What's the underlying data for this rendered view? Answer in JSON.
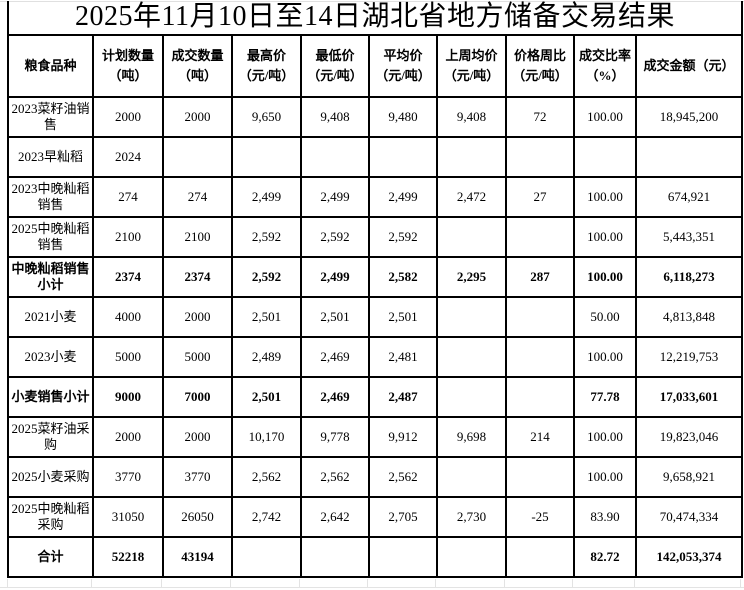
{
  "title": "2025年11月10日至14日湖北省地方储备交易结果",
  "table": {
    "columns": [
      "粮食品种",
      "计划数量\n（吨）",
      "成交数量\n（吨）",
      "最高价\n（元/吨）",
      "最低价\n（元/吨）",
      "平均价\n（元/吨）",
      "上周均价\n（元/吨）",
      "价格周比\n（元/吨）",
      "成交比率\n（%）",
      "成交金额（元）"
    ],
    "rows": [
      {
        "name": "2023菜籽油销售",
        "bold": false,
        "values": [
          "2000",
          "2000",
          "9,650",
          "9,408",
          "9,480",
          "9,408",
          "72",
          "100.00",
          "18,945,200"
        ]
      },
      {
        "name": "2023早籼稻",
        "bold": false,
        "values": [
          "2024",
          "",
          "",
          "",
          "",
          "",
          "",
          "",
          ""
        ]
      },
      {
        "name": "2023中晚籼稻销售",
        "bold": false,
        "values": [
          "274",
          "274",
          "2,499",
          "2,499",
          "2,499",
          "2,472",
          "27",
          "100.00",
          "674,921"
        ]
      },
      {
        "name": "2025中晚籼稻销售",
        "bold": false,
        "values": [
          "2100",
          "2100",
          "2,592",
          "2,592",
          "2,592",
          "",
          "",
          "100.00",
          "5,443,351"
        ]
      },
      {
        "name": "中晚籼稻销售小计",
        "bold": true,
        "values": [
          "2374",
          "2374",
          "2,592",
          "2,499",
          "2,582",
          "2,295",
          "287",
          "100.00",
          "6,118,273"
        ]
      },
      {
        "name": "2021小麦",
        "bold": false,
        "values": [
          "4000",
          "2000",
          "2,501",
          "2,501",
          "2,501",
          "",
          "",
          "50.00",
          "4,813,848"
        ]
      },
      {
        "name": "2023小麦",
        "bold": false,
        "values": [
          "5000",
          "5000",
          "2,489",
          "2,469",
          "2,481",
          "",
          "",
          "100.00",
          "12,219,753"
        ]
      },
      {
        "name": "小麦销售小计",
        "bold": true,
        "values": [
          "9000",
          "7000",
          "2,501",
          "2,469",
          "2,487",
          "",
          "",
          "77.78",
          "17,033,601"
        ]
      },
      {
        "name": "2025菜籽油采购",
        "bold": false,
        "values": [
          "2000",
          "2000",
          "10,170",
          "9,778",
          "9,912",
          "9,698",
          "214",
          "100.00",
          "19,823,046"
        ]
      },
      {
        "name": "2025小麦采购",
        "bold": false,
        "values": [
          "3770",
          "3770",
          "2,562",
          "2,562",
          "2,562",
          "",
          "",
          "100.00",
          "9,658,921"
        ]
      },
      {
        "name": "2025中晚籼稻采购",
        "bold": false,
        "values": [
          "31050",
          "26050",
          "2,742",
          "2,642",
          "2,705",
          "2,730",
          "-25",
          "83.90",
          "70,474,334"
        ]
      },
      {
        "name": "合计",
        "bold": true,
        "values": [
          "52218",
          "43194",
          "",
          "",
          "",
          "",
          "",
          "82.72",
          "142,053,374"
        ]
      }
    ]
  },
  "colors": {
    "border": "#000000",
    "grid_light": "#e3e3e3",
    "text": "#000000",
    "background": "#ffffff"
  }
}
